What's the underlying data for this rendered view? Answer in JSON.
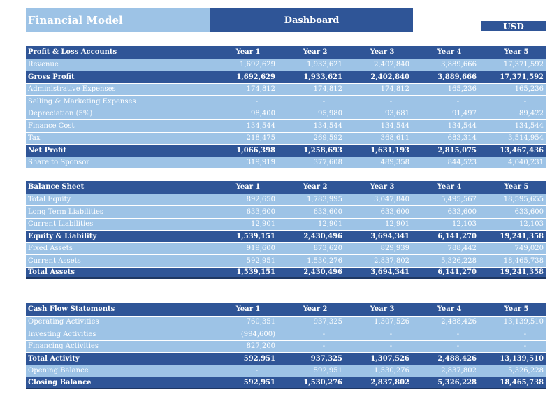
{
  "header": {
    "title": "Financial Model",
    "dashboard": "Dashboard",
    "currency": "USD"
  },
  "years": [
    "Year 1",
    "Year 2",
    "Year 3",
    "Year 4",
    "Year 5"
  ],
  "pl": {
    "title": "Profit & Loss Accounts",
    "rows": [
      {
        "label": "Revenue",
        "type": "normal",
        "values": [
          "1,692,629",
          "1,933,621",
          "2,402,840",
          "3,889,666",
          "17,371,592"
        ]
      },
      {
        "label": "Gross Profit",
        "type": "total",
        "values": [
          "1,692,629",
          "1,933,621",
          "2,402,840",
          "3,889,666",
          "17,371,592"
        ]
      },
      {
        "label": "Administrative Expenses",
        "type": "normal",
        "values": [
          "174,812",
          "174,812",
          "174,812",
          "165,236",
          "165,236"
        ]
      },
      {
        "label": "Selling & Marketing Expenses",
        "type": "normal",
        "values": [
          "-",
          "-",
          "-",
          "-",
          "-"
        ]
      },
      {
        "label": "Depreciation (5%)",
        "type": "normal",
        "values": [
          "98,400",
          "95,980",
          "93,681",
          "91,497",
          "89,422"
        ]
      },
      {
        "label": "Finance Cost",
        "type": "normal",
        "values": [
          "134,544",
          "134,544",
          "134,544",
          "134,544",
          "134,544"
        ]
      },
      {
        "label": "Tax",
        "type": "normal",
        "values": [
          "218,475",
          "269,592",
          "368,611",
          "683,314",
          "3,514,954"
        ]
      },
      {
        "label": "Net Profit",
        "type": "total",
        "values": [
          "1,066,398",
          "1,258,693",
          "1,631,193",
          "2,815,075",
          "13,467,436"
        ]
      },
      {
        "label": "Share to Sponsor",
        "type": "normal",
        "values": [
          "319,919",
          "377,608",
          "489,358",
          "844,523",
          "4,040,231"
        ]
      }
    ]
  },
  "bs": {
    "title": "Balance Sheet",
    "rows": [
      {
        "label": "Total Equity",
        "type": "normal",
        "values": [
          "892,650",
          "1,783,995",
          "3,047,840",
          "5,495,567",
          "18,595,655"
        ]
      },
      {
        "label": "Long Term Liabilities",
        "type": "normal",
        "values": [
          "633,600",
          "633,600",
          "633,600",
          "633,600",
          "633,600"
        ]
      },
      {
        "label": "Current Liabilities",
        "type": "normal",
        "values": [
          "12,901",
          "12,901",
          "12,901",
          "12,103",
          "12,103"
        ]
      },
      {
        "label": "Equity & Liability",
        "type": "total",
        "values": [
          "1,539,151",
          "2,430,496",
          "3,694,341",
          "6,141,270",
          "19,241,358"
        ]
      },
      {
        "label": "Fixed Assets",
        "type": "normal",
        "values": [
          "919,600",
          "873,620",
          "829,939",
          "788,442",
          "749,020"
        ]
      },
      {
        "label": "Current Assets",
        "type": "normal",
        "values": [
          "592,951",
          "1,530,276",
          "2,837,802",
          "5,326,228",
          "18,465,738"
        ]
      },
      {
        "label": "Total Assets",
        "type": "total",
        "values": [
          "1,539,151",
          "2,430,496",
          "3,694,341",
          "6,141,270",
          "19,241,358"
        ]
      }
    ]
  },
  "cf": {
    "title": "Cash Flow Statements",
    "rows": [
      {
        "label": "Operating Activities",
        "type": "normal",
        "values": [
          "760,351",
          "937,325",
          "1,307,526",
          "2,488,426",
          "13,139,510"
        ]
      },
      {
        "label": "Investing Activities",
        "type": "normal",
        "values": [
          "(994,600)",
          "-",
          "-",
          "-",
          "-"
        ]
      },
      {
        "label": "Financing Activities",
        "type": "normal",
        "values": [
          "827,200",
          "-",
          "-",
          "-",
          "-"
        ]
      },
      {
        "label": "Total Activity",
        "type": "total",
        "values": [
          "592,951",
          "937,325",
          "1,307,526",
          "2,488,426",
          "13,139,510"
        ]
      },
      {
        "label": "Opening Balance",
        "type": "normal",
        "values": [
          "-",
          "592,951",
          "1,530,276",
          "2,837,802",
          "5,326,228"
        ]
      },
      {
        "label": "Closing Balance",
        "type": "total",
        "values": [
          "592,951",
          "1,530,276",
          "2,837,802",
          "5,326,228",
          "18,465,738"
        ]
      }
    ]
  }
}
